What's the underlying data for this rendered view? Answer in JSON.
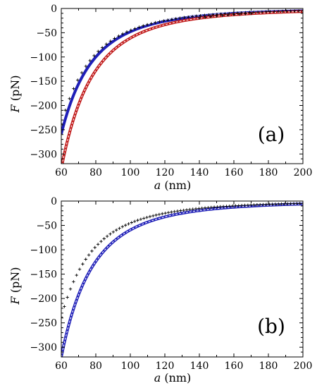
{
  "chart_data": [
    {
      "type": "line",
      "panel_label": "(a)",
      "xlabel_var": "a",
      "xlabel_unit": "(nm)",
      "ylabel_var": "F",
      "ylabel_unit": "(pN)",
      "xlim": [
        60,
        200
      ],
      "ylim": [
        -320,
        0
      ],
      "xticks": [
        "60",
        "80",
        "100",
        "120",
        "140",
        "160",
        "180",
        "200"
      ],
      "yticks": [
        "0",
        "−50",
        "−100",
        "−150",
        "−200",
        "−250",
        "−300"
      ],
      "xtick_values": [
        60,
        80,
        100,
        120,
        140,
        160,
        180,
        200
      ],
      "ytick_values": [
        0,
        -50,
        -100,
        -150,
        -200,
        -250,
        -300
      ],
      "grid": false,
      "series": [
        {
          "kind": "solid",
          "color": "#1f1fb8",
          "coef": -258.7,
          "power": 3.3
        },
        {
          "kind": "dashed",
          "color": "#ffffff",
          "coef": -240.0,
          "power": 3.3
        },
        {
          "kind": "solid",
          "color": "#c01818",
          "coef": -330.0,
          "power": 3.3
        },
        {
          "kind": "dashed",
          "color": "#ffffff",
          "coef": -330.0,
          "power": 3.3
        },
        {
          "kind": "markers",
          "color": "#000000",
          "coef": -238.0,
          "power": 3.25,
          "x_start": 60,
          "x_end": 200,
          "count": 60
        },
        {
          "kind": "markers",
          "color": "#000000",
          "coef": -320.0,
          "power": 3.3,
          "x_start": 140,
          "x_end": 170,
          "count": 10
        }
      ]
    },
    {
      "type": "line",
      "panel_label": "(b)",
      "xlabel_var": "a",
      "xlabel_unit": "(nm)",
      "ylabel_var": "F",
      "ylabel_unit": "(pN)",
      "xlim": [
        60,
        200
      ],
      "ylim": [
        -320,
        0
      ],
      "xticks": [
        "60",
        "80",
        "100",
        "120",
        "140",
        "160",
        "180",
        "200"
      ],
      "yticks": [
        "0",
        "−50",
        "−100",
        "−150",
        "−200",
        "−250",
        "−300"
      ],
      "xtick_values": [
        60,
        80,
        100,
        120,
        140,
        160,
        180,
        200
      ],
      "ytick_values": [
        0,
        -50,
        -100,
        -150,
        -200,
        -250,
        -300
      ],
      "grid": false,
      "series": [
        {
          "kind": "solid",
          "color": "#1f1fb8",
          "coef": -320.0,
          "power": 3.3
        },
        {
          "kind": "dashed",
          "color": "#ffffff",
          "coef": -320.0,
          "power": 3.3
        },
        {
          "kind": "markers",
          "color": "#000000",
          "coef": -238.0,
          "power": 3.25,
          "x_start": 60,
          "x_end": 200,
          "count": 80
        }
      ]
    }
  ]
}
